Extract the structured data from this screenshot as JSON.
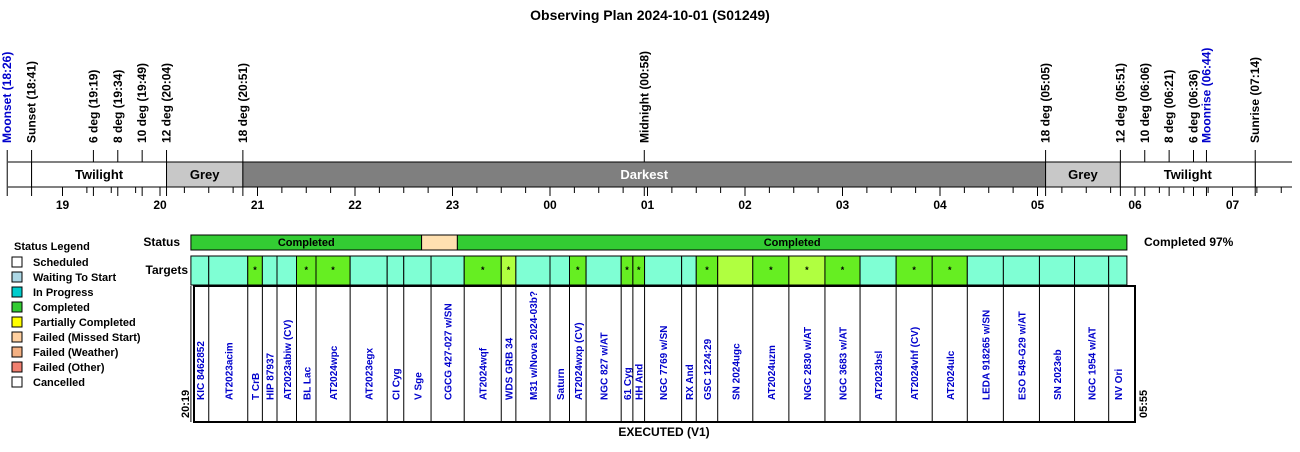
{
  "title": "Observing Plan 2024-10-01 (S01249)",
  "footer_label": "EXECUTED (V1)",
  "start_label": "20:19",
  "end_label": "05:55",
  "colors": {
    "twilight": "#ffffff",
    "grey": "#c8c8c8",
    "darkest": "#7f7f7f",
    "completed": "#33cc33",
    "scheduled_slot": "#ffe0b0",
    "target_cyan": "#7fffd4",
    "target_green": "#66ee22",
    "target_lime": "#b0ff40",
    "moon_text": "#0000cc",
    "target_text": "#0000cc"
  },
  "chart_data": {
    "type": "timeline",
    "time_axis": {
      "start_hour": 18.3,
      "end_hour": 31.55,
      "tick_labels": [
        "19",
        "20",
        "21",
        "22",
        "23",
        "00",
        "01",
        "02",
        "03",
        "04",
        "05",
        "06",
        "07"
      ]
    },
    "events": [
      {
        "label": "Moonset (18:26)",
        "time": 18.433,
        "moon": true
      },
      {
        "label": "Sunset (18:41)",
        "time": 18.683,
        "moon": false
      },
      {
        "label": "6 deg (19:19)",
        "time": 19.317,
        "moon": false
      },
      {
        "label": "8 deg (19:34)",
        "time": 19.567,
        "moon": false
      },
      {
        "label": "10 deg (19:49)",
        "time": 19.817,
        "moon": false
      },
      {
        "label": "12 deg (20:04)",
        "time": 20.067,
        "moon": false
      },
      {
        "label": "18 deg (20:51)",
        "time": 20.85,
        "moon": false
      },
      {
        "label": "Midnight (00:58)",
        "time": 24.967,
        "moon": false
      },
      {
        "label": "18 deg (05:05)",
        "time": 29.083,
        "moon": false
      },
      {
        "label": "12 deg (05:51)",
        "time": 29.85,
        "moon": false
      },
      {
        "label": "10 deg (06:06)",
        "time": 30.1,
        "moon": false
      },
      {
        "label": "8 deg (06:21)",
        "time": 30.35,
        "moon": false
      },
      {
        "label": "6 deg (06:36)",
        "time": 30.6,
        "moon": false
      },
      {
        "label": "Moonrise (06:44)",
        "time": 30.733,
        "moon": true
      },
      {
        "label": "Sunrise (07:14)",
        "time": 31.233,
        "moon": false
      }
    ],
    "sky_bands": [
      {
        "label": "Twilight",
        "start": 18.683,
        "end": 20.067,
        "shade": "twilight"
      },
      {
        "label": "Grey",
        "start": 20.067,
        "end": 20.85,
        "shade": "grey"
      },
      {
        "label": "Darkest",
        "start": 20.85,
        "end": 29.083,
        "shade": "darkest"
      },
      {
        "label": "Grey",
        "start": 29.083,
        "end": 29.85,
        "shade": "grey"
      },
      {
        "label": "Twilight",
        "start": 29.85,
        "end": 31.233,
        "shade": "twilight"
      }
    ],
    "status_row": {
      "label": "Status",
      "summary": "Completed 97%",
      "segments": [
        {
          "label": "Completed",
          "start": 20.317,
          "end": 22.683,
          "shade": "completed"
        },
        {
          "label": "",
          "start": 22.683,
          "end": 23.05,
          "shade": "scheduled_slot"
        },
        {
          "label": "Completed",
          "start": 23.05,
          "end": 29.917,
          "shade": "completed"
        }
      ]
    },
    "targets_row": {
      "label": "Targets",
      "targets": [
        {
          "name": "KIC 8462852",
          "start": 20.317,
          "end": 20.5,
          "shade": "target_cyan",
          "mark": ""
        },
        {
          "name": "AT2023acim",
          "start": 20.5,
          "end": 20.9,
          "shade": "target_cyan",
          "mark": ""
        },
        {
          "name": "T CrB",
          "start": 20.9,
          "end": 21.05,
          "shade": "target_green",
          "mark": "*"
        },
        {
          "name": "HIP 87937",
          "start": 21.05,
          "end": 21.2,
          "shade": "target_cyan",
          "mark": ""
        },
        {
          "name": "AT2023abiw (CV)",
          "start": 21.2,
          "end": 21.4,
          "shade": "target_cyan",
          "mark": ""
        },
        {
          "name": "BL Lac",
          "start": 21.4,
          "end": 21.6,
          "shade": "target_green",
          "mark": "*"
        },
        {
          "name": "AT2024wpc",
          "start": 21.6,
          "end": 21.95,
          "shade": "target_green",
          "mark": "*"
        },
        {
          "name": "AT2023egx",
          "start": 21.95,
          "end": 22.33,
          "shade": "target_cyan",
          "mark": ""
        },
        {
          "name": "CI Cyg",
          "start": 22.33,
          "end": 22.5,
          "shade": "target_cyan",
          "mark": ""
        },
        {
          "name": "V Sge",
          "start": 22.5,
          "end": 22.78,
          "shade": "target_cyan",
          "mark": ""
        },
        {
          "name": "CGCG 427-027 w/SN",
          "start": 22.78,
          "end": 23.12,
          "shade": "target_cyan",
          "mark": ""
        },
        {
          "name": "AT2024wqf",
          "start": 23.12,
          "end": 23.5,
          "shade": "target_green",
          "mark": "*"
        },
        {
          "name": "WDS GRB 34",
          "start": 23.5,
          "end": 23.65,
          "shade": "target_lime",
          "mark": "*"
        },
        {
          "name": "M31 w/Nova 2024-03b?",
          "start": 23.65,
          "end": 24.0,
          "shade": "target_cyan",
          "mark": ""
        },
        {
          "name": "Saturn",
          "start": 24.0,
          "end": 24.2,
          "shade": "target_cyan",
          "mark": ""
        },
        {
          "name": "AT2024wxp (CV)",
          "start": 24.2,
          "end": 24.37,
          "shade": "target_green",
          "mark": "*"
        },
        {
          "name": "NGC 827 w/AT",
          "start": 24.37,
          "end": 24.73,
          "shade": "target_cyan",
          "mark": ""
        },
        {
          "name": "61 Cyg",
          "start": 24.73,
          "end": 24.85,
          "shade": "target_green",
          "mark": "*"
        },
        {
          "name": "HH And",
          "start": 24.85,
          "end": 24.97,
          "shade": "target_green",
          "mark": "*"
        },
        {
          "name": "NGC 7769 w/SN",
          "start": 24.97,
          "end": 25.35,
          "shade": "target_cyan",
          "mark": ""
        },
        {
          "name": "RX And",
          "start": 25.35,
          "end": 25.5,
          "shade": "target_cyan",
          "mark": ""
        },
        {
          "name": "GSC 1224:29",
          "start": 25.5,
          "end": 25.72,
          "shade": "target_green",
          "mark": "*"
        },
        {
          "name": "SN 2024ugc",
          "start": 25.72,
          "end": 26.08,
          "shade": "target_lime",
          "mark": ""
        },
        {
          "name": "AT2024uzm",
          "start": 26.08,
          "end": 26.45,
          "shade": "target_green",
          "mark": "*"
        },
        {
          "name": "NGC 2830 w/AT",
          "start": 26.45,
          "end": 26.82,
          "shade": "target_lime",
          "mark": "*"
        },
        {
          "name": "NGC 3683 w/AT",
          "start": 26.82,
          "end": 27.18,
          "shade": "target_green",
          "mark": "*"
        },
        {
          "name": "AT2023bsl",
          "start": 27.18,
          "end": 27.55,
          "shade": "target_cyan",
          "mark": ""
        },
        {
          "name": "AT2024vhf (CV)",
          "start": 27.55,
          "end": 27.92,
          "shade": "target_green",
          "mark": "*"
        },
        {
          "name": "AT2024ulc",
          "start": 27.92,
          "end": 28.28,
          "shade": "target_green",
          "mark": "*"
        },
        {
          "name": "LEDA 918265 w/SN",
          "start": 28.28,
          "end": 28.65,
          "shade": "target_cyan",
          "mark": ""
        },
        {
          "name": "ESO 549-G29 w/AT",
          "start": 28.65,
          "end": 29.02,
          "shade": "target_cyan",
          "mark": ""
        },
        {
          "name": "SN 2023eb",
          "start": 29.02,
          "end": 29.38,
          "shade": "target_cyan",
          "mark": ""
        },
        {
          "name": "NGC 1954 w/AT",
          "start": 29.38,
          "end": 29.73,
          "shade": "target_cyan",
          "mark": ""
        },
        {
          "name": "NV Ori",
          "start": 29.73,
          "end": 29.917,
          "shade": "target_cyan",
          "mark": ""
        }
      ]
    }
  },
  "legend": {
    "title": "Status Legend",
    "items": [
      {
        "label": "Scheduled",
        "color": "#ffffff"
      },
      {
        "label": "Waiting To Start",
        "color": "#add8e6"
      },
      {
        "label": "In Progress",
        "color": "#00cccc"
      },
      {
        "label": "Completed",
        "color": "#33cc33"
      },
      {
        "label": "Partially Completed",
        "color": "#ffff00"
      },
      {
        "label": "Failed (Missed Start)",
        "color": "#ffd0a0"
      },
      {
        "label": "Failed (Weather)",
        "color": "#f4b183"
      },
      {
        "label": "Failed (Other)",
        "color": "#f08070"
      },
      {
        "label": "Cancelled",
        "color": "#ffffff"
      }
    ]
  }
}
